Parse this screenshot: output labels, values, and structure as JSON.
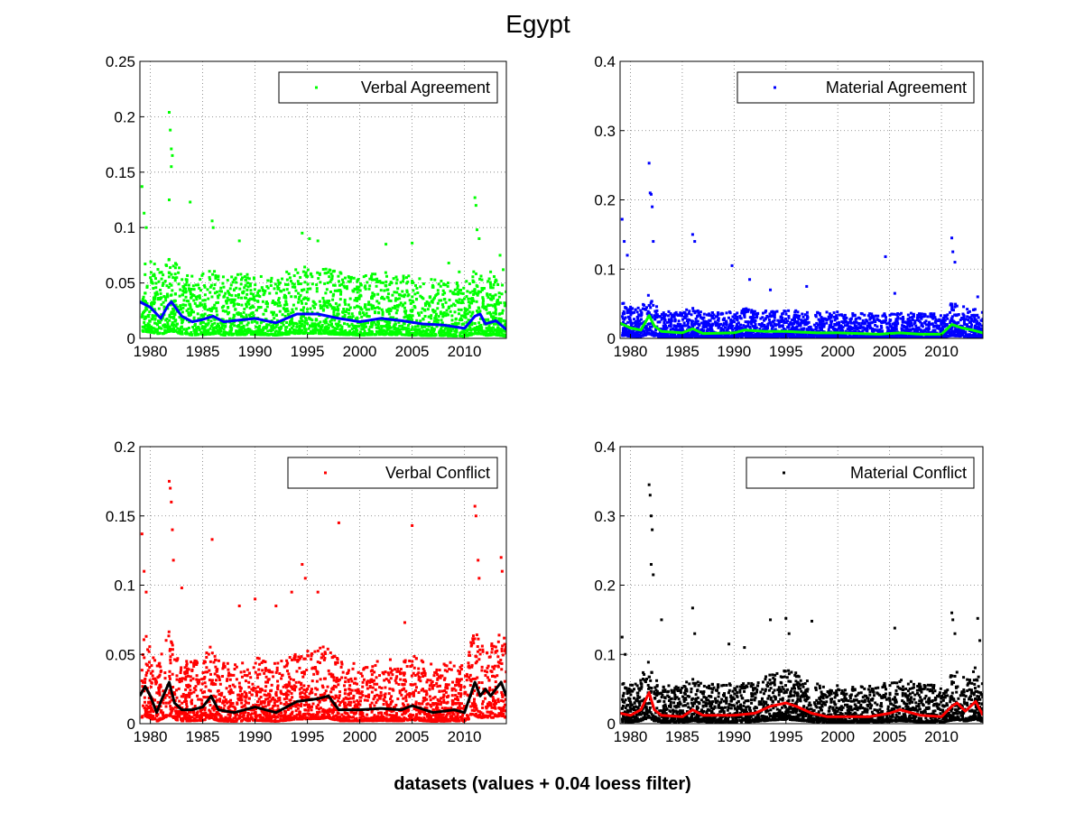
{
  "figure": {
    "title": "Egypt",
    "xlabel": "datasets (values + 0.04 loess filter)"
  },
  "chart_data": [
    {
      "type": "scatter",
      "legend": "Verbal Agreement",
      "legend_location": "top-right",
      "grid": true,
      "xlim": [
        1979,
        2014
      ],
      "ylim": [
        0,
        0.25
      ],
      "x_ticks": [
        1980,
        1985,
        1990,
        1995,
        2000,
        2005,
        2010
      ],
      "y_ticks": [
        0,
        0.05,
        0.1,
        0.15,
        0.2,
        0.25
      ],
      "y_tick_labels": [
        "0",
        "0.05",
        "0.1",
        "0.15",
        "0.2",
        "0.25"
      ],
      "marker_color": "#00ff00",
      "trend_color": "#0000ff",
      "density_base": 0.022,
      "density_spread": 0.016,
      "trend": [
        [
          1979,
          0.033
        ],
        [
          1980,
          0.028
        ],
        [
          1981,
          0.018
        ],
        [
          1981.7,
          0.03
        ],
        [
          1982,
          0.033
        ],
        [
          1983,
          0.02
        ],
        [
          1984,
          0.015
        ],
        [
          1985,
          0.017
        ],
        [
          1986,
          0.02
        ],
        [
          1987,
          0.015
        ],
        [
          1988,
          0.016
        ],
        [
          1990,
          0.018
        ],
        [
          1992,
          0.014
        ],
        [
          1994,
          0.022
        ],
        [
          1996,
          0.022
        ],
        [
          1998,
          0.018
        ],
        [
          2000,
          0.015
        ],
        [
          2002,
          0.018
        ],
        [
          2004,
          0.016
        ],
        [
          2006,
          0.013
        ],
        [
          2008,
          0.012
        ],
        [
          2010,
          0.009
        ],
        [
          2011,
          0.02
        ],
        [
          2011.5,
          0.022
        ],
        [
          2012,
          0.013
        ],
        [
          2013,
          0.016
        ],
        [
          2014,
          0.008
        ]
      ],
      "outliers": [
        [
          1979.2,
          0.137
        ],
        [
          1979.4,
          0.113
        ],
        [
          1979.6,
          0.1
        ],
        [
          1981.8,
          0.204
        ],
        [
          1981.9,
          0.188
        ],
        [
          1982,
          0.171
        ],
        [
          1982.1,
          0.165
        ],
        [
          1982,
          0.155
        ],
        [
          1981.8,
          0.125
        ],
        [
          1983.8,
          0.123
        ],
        [
          1985.9,
          0.106
        ],
        [
          1986,
          0.1
        ],
        [
          1988.5,
          0.088
        ],
        [
          1994.5,
          0.095
        ],
        [
          1995.2,
          0.09
        ],
        [
          1996,
          0.088
        ],
        [
          2002.5,
          0.085
        ],
        [
          2005,
          0.086
        ],
        [
          2008.5,
          0.068
        ],
        [
          2009.5,
          0.06
        ],
        [
          2011,
          0.127
        ],
        [
          2011.1,
          0.12
        ],
        [
          2011.2,
          0.098
        ],
        [
          2011.4,
          0.09
        ],
        [
          2012.5,
          0.06
        ],
        [
          2013.4,
          0.075
        ],
        [
          2013.7,
          0.062
        ]
      ]
    },
    {
      "type": "scatter",
      "legend": "Material Agreement",
      "legend_location": "top-right",
      "grid": true,
      "xlim": [
        1979,
        2014
      ],
      "ylim": [
        0,
        0.4
      ],
      "x_ticks": [
        1980,
        1985,
        1990,
        1995,
        2000,
        2005,
        2010
      ],
      "y_ticks": [
        0,
        0.1,
        0.2,
        0.3,
        0.4
      ],
      "y_tick_labels": [
        "0",
        "0.1",
        "0.2",
        "0.3",
        "0.4"
      ],
      "marker_color": "#0000ff",
      "trend_color": "#00ff00",
      "density_base": 0.012,
      "density_spread": 0.012,
      "trend": [
        [
          1979,
          0.022
        ],
        [
          1980,
          0.015
        ],
        [
          1981,
          0.012
        ],
        [
          1981.8,
          0.033
        ],
        [
          1982.3,
          0.018
        ],
        [
          1983,
          0.01
        ],
        [
          1985,
          0.008
        ],
        [
          1986,
          0.014
        ],
        [
          1987,
          0.007
        ],
        [
          1990,
          0.008
        ],
        [
          1991,
          0.012
        ],
        [
          1993,
          0.01
        ],
        [
          1995,
          0.01
        ],
        [
          1998,
          0.008
        ],
        [
          2000,
          0.008
        ],
        [
          2004,
          0.006
        ],
        [
          2006,
          0.008
        ],
        [
          2008,
          0.006
        ],
        [
          2010,
          0.006
        ],
        [
          2011,
          0.02
        ],
        [
          2012,
          0.015
        ],
        [
          2013,
          0.012
        ],
        [
          2014,
          0.008
        ]
      ],
      "outliers": [
        [
          1979.2,
          0.172
        ],
        [
          1979.4,
          0.14
        ],
        [
          1979.7,
          0.12
        ],
        [
          1981.8,
          0.253
        ],
        [
          1981.9,
          0.21
        ],
        [
          1982,
          0.208
        ],
        [
          1982.1,
          0.19
        ],
        [
          1982.2,
          0.14
        ],
        [
          1986,
          0.15
        ],
        [
          1986.2,
          0.14
        ],
        [
          1989.8,
          0.105
        ],
        [
          1991.5,
          0.085
        ],
        [
          1993.5,
          0.07
        ],
        [
          1997,
          0.075
        ],
        [
          2004.6,
          0.118
        ],
        [
          2005.5,
          0.065
        ],
        [
          2011,
          0.145
        ],
        [
          2011.1,
          0.125
        ],
        [
          2011.3,
          0.11
        ],
        [
          2013.5,
          0.06
        ]
      ]
    },
    {
      "type": "scatter",
      "legend": "Verbal Conflict",
      "legend_location": "top-right",
      "grid": true,
      "xlim": [
        1979,
        2014
      ],
      "ylim": [
        0,
        0.2
      ],
      "x_ticks": [
        1980,
        1985,
        1990,
        1995,
        2000,
        2005,
        2010
      ],
      "y_ticks": [
        0,
        0.05,
        0.1,
        0.15,
        0.2
      ],
      "y_tick_labels": [
        "0",
        "0.05",
        "0.1",
        "0.15",
        "0.2"
      ],
      "marker_color": "#ff0000",
      "trend_color": "#000000",
      "density_base": 0.016,
      "density_spread": 0.014,
      "trend": [
        [
          1979,
          0.02
        ],
        [
          1979.5,
          0.027
        ],
        [
          1980,
          0.02
        ],
        [
          1980.6,
          0.008
        ],
        [
          1981,
          0.016
        ],
        [
          1981.8,
          0.03
        ],
        [
          1982.3,
          0.015
        ],
        [
          1983,
          0.01
        ],
        [
          1984,
          0.01
        ],
        [
          1985,
          0.012
        ],
        [
          1985.8,
          0.02
        ],
        [
          1986.5,
          0.01
        ],
        [
          1988,
          0.008
        ],
        [
          1990,
          0.012
        ],
        [
          1992,
          0.008
        ],
        [
          1994,
          0.016
        ],
        [
          1996,
          0.018
        ],
        [
          1997,
          0.02
        ],
        [
          1998,
          0.01
        ],
        [
          2000,
          0.01
        ],
        [
          2002,
          0.011
        ],
        [
          2004,
          0.01
        ],
        [
          2005,
          0.013
        ],
        [
          2007,
          0.008
        ],
        [
          2009,
          0.01
        ],
        [
          2010,
          0.008
        ],
        [
          2011,
          0.03
        ],
        [
          2011.5,
          0.02
        ],
        [
          2012,
          0.025
        ],
        [
          2012.5,
          0.02
        ],
        [
          2013.5,
          0.03
        ],
        [
          2014,
          0.02
        ]
      ],
      "outliers": [
        [
          1979.2,
          0.137
        ],
        [
          1979.4,
          0.11
        ],
        [
          1979.6,
          0.095
        ],
        [
          1981.8,
          0.175
        ],
        [
          1981.9,
          0.17
        ],
        [
          1982,
          0.16
        ],
        [
          1982.1,
          0.14
        ],
        [
          1982.2,
          0.118
        ],
        [
          1983,
          0.098
        ],
        [
          1985.9,
          0.133
        ],
        [
          1988.5,
          0.085
        ],
        [
          1990,
          0.09
        ],
        [
          1992,
          0.085
        ],
        [
          1993.5,
          0.095
        ],
        [
          1994.5,
          0.115
        ],
        [
          1994.8,
          0.105
        ],
        [
          1996,
          0.095
        ],
        [
          1998,
          0.145
        ],
        [
          2004.3,
          0.073
        ],
        [
          2005,
          0.143
        ],
        [
          2011,
          0.157
        ],
        [
          2011.1,
          0.15
        ],
        [
          2011.3,
          0.118
        ],
        [
          2011.4,
          0.105
        ],
        [
          2013.5,
          0.12
        ],
        [
          2013.6,
          0.11
        ]
      ]
    },
    {
      "type": "scatter",
      "legend": "Material Conflict",
      "legend_location": "top-right",
      "grid": true,
      "xlim": [
        1979,
        2014
      ],
      "ylim": [
        0,
        0.4
      ],
      "x_ticks": [
        1980,
        1985,
        1990,
        1995,
        2000,
        2005,
        2010
      ],
      "y_ticks": [
        0,
        0.1,
        0.2,
        0.3,
        0.4
      ],
      "y_tick_labels": [
        "0",
        "0.1",
        "0.2",
        "0.3",
        "0.4"
      ],
      "marker_color": "#000000",
      "trend_color": "#ff0000",
      "density_base": 0.02,
      "density_spread": 0.018,
      "trend": [
        [
          1979,
          0.015
        ],
        [
          1980,
          0.012
        ],
        [
          1981,
          0.02
        ],
        [
          1981.8,
          0.045
        ],
        [
          1982.3,
          0.02
        ],
        [
          1983,
          0.012
        ],
        [
          1985,
          0.01
        ],
        [
          1986,
          0.02
        ],
        [
          1987,
          0.012
        ],
        [
          1990,
          0.012
        ],
        [
          1992,
          0.015
        ],
        [
          1993.5,
          0.025
        ],
        [
          1995,
          0.03
        ],
        [
          1996,
          0.025
        ],
        [
          1997.5,
          0.015
        ],
        [
          1999,
          0.01
        ],
        [
          2001,
          0.01
        ],
        [
          2003,
          0.01
        ],
        [
          2005,
          0.015
        ],
        [
          2006,
          0.02
        ],
        [
          2008,
          0.012
        ],
        [
          2010,
          0.01
        ],
        [
          2011,
          0.025
        ],
        [
          2011.5,
          0.03
        ],
        [
          2012.3,
          0.018
        ],
        [
          2013.3,
          0.032
        ],
        [
          2014,
          0.012
        ]
      ],
      "outliers": [
        [
          1979.2,
          0.125
        ],
        [
          1979.5,
          0.1
        ],
        [
          1981.8,
          0.345
        ],
        [
          1981.9,
          0.33
        ],
        [
          1982,
          0.3
        ],
        [
          1982.1,
          0.28
        ],
        [
          1982,
          0.23
        ],
        [
          1982.2,
          0.215
        ],
        [
          1983,
          0.15
        ],
        [
          1986,
          0.167
        ],
        [
          1986.2,
          0.13
        ],
        [
          1989.5,
          0.115
        ],
        [
          1991,
          0.11
        ],
        [
          1993.5,
          0.15
        ],
        [
          1995,
          0.152
        ],
        [
          1995.3,
          0.13
        ],
        [
          1997.5,
          0.148
        ],
        [
          2005.5,
          0.138
        ],
        [
          2011,
          0.16
        ],
        [
          2011.1,
          0.15
        ],
        [
          2011.3,
          0.13
        ],
        [
          2013.5,
          0.152
        ],
        [
          2013.7,
          0.12
        ]
      ]
    }
  ]
}
